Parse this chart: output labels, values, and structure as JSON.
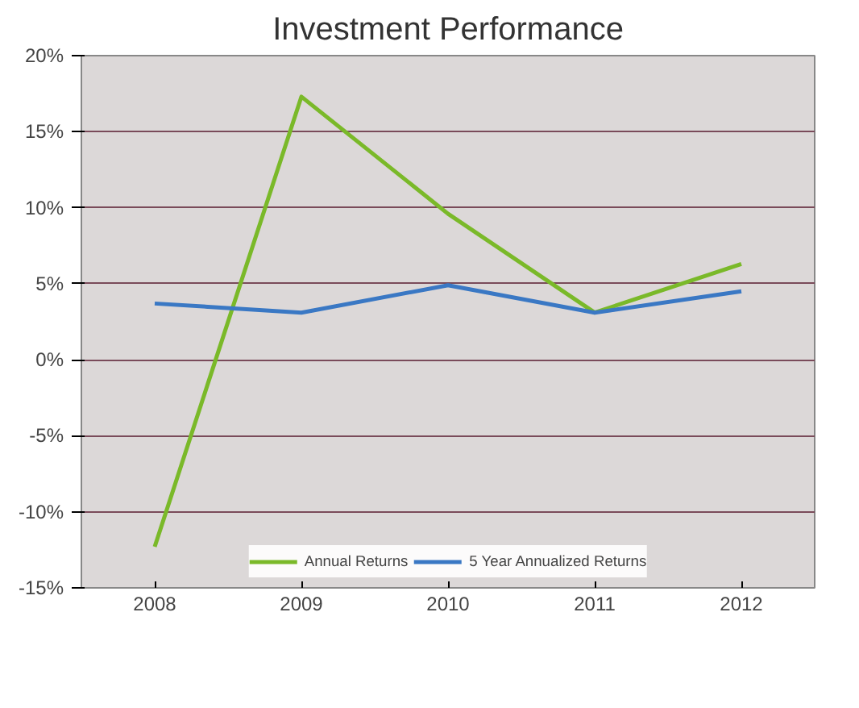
{
  "chart_data": {
    "type": "line",
    "title": "Investment Performance",
    "categories": [
      "2008",
      "2009",
      "2010",
      "2011",
      "2012"
    ],
    "series": [
      {
        "name": "Annual Returns",
        "color": "#7ab929",
        "values": [
          -12.3,
          17.3,
          9.6,
          3.1,
          6.3
        ]
      },
      {
        "name": "5 Year Annualized Returns",
        "color": "#3a78c4",
        "values": [
          3.7,
          3.1,
          4.9,
          3.1,
          4.5
        ]
      }
    ],
    "ylim": [
      -15,
      20
    ],
    "yticks": [
      {
        "value": -15,
        "label": "-15%"
      },
      {
        "value": -10,
        "label": "-10%"
      },
      {
        "value": -5,
        "label": "-5%"
      },
      {
        "value": 0,
        "label": "0%"
      },
      {
        "value": 5,
        "label": "5%"
      },
      {
        "value": 10,
        "label": "10%"
      },
      {
        "value": 15,
        "label": "15%"
      },
      {
        "value": 20,
        "label": "20%"
      }
    ],
    "grid": "y",
    "legend": "bottom",
    "marker": "none",
    "line_style": "solid"
  }
}
